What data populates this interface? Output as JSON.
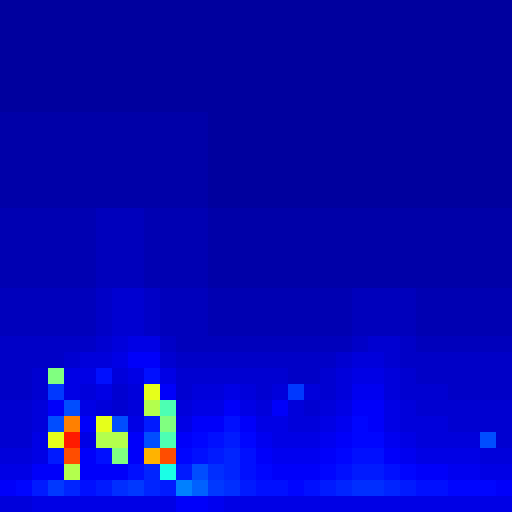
{
  "chart_data": {
    "type": "heatmap",
    "tick_labels": false,
    "zlim": [
      0,
      100
    ],
    "cells": [
      [
        3,
        3,
        3,
        3,
        3,
        3,
        3,
        3,
        3,
        3,
        3,
        3,
        3,
        3,
        3,
        3,
        3,
        3,
        3,
        3,
        3,
        3,
        3,
        3,
        3,
        3,
        3,
        3,
        3,
        3,
        3,
        3
      ],
      [
        3,
        3,
        3,
        3,
        3,
        3,
        3,
        3,
        3,
        3,
        3,
        3,
        3,
        3,
        3,
        3,
        3,
        3,
        3,
        3,
        3,
        3,
        3,
        3,
        3,
        3,
        3,
        3,
        3,
        3,
        3,
        3
      ],
      [
        3,
        3,
        3,
        3,
        3,
        3,
        3,
        3,
        3,
        3,
        3,
        3,
        3,
        3,
        3,
        3,
        3,
        3,
        3,
        3,
        3,
        3,
        3,
        3,
        3,
        3,
        3,
        3,
        3,
        3,
        3,
        3
      ],
      [
        3,
        3,
        3,
        3,
        3,
        3,
        3,
        3,
        3,
        3,
        3,
        3,
        3,
        3,
        3,
        3,
        3,
        3,
        3,
        3,
        3,
        3,
        3,
        3,
        3,
        3,
        3,
        3,
        3,
        3,
        3,
        3
      ],
      [
        3,
        3,
        3,
        3,
        3,
        3,
        3,
        3,
        3,
        3,
        3,
        3,
        3,
        3,
        3,
        3,
        3,
        3,
        3,
        3,
        3,
        3,
        3,
        3,
        3,
        3,
        3,
        3,
        3,
        3,
        3,
        3
      ],
      [
        3,
        3,
        3,
        3,
        3,
        3,
        3,
        3,
        3,
        3,
        3,
        3,
        3,
        3,
        3,
        3,
        3,
        3,
        3,
        3,
        3,
        3,
        3,
        3,
        3,
        3,
        3,
        3,
        3,
        3,
        3,
        3
      ],
      [
        3,
        3,
        3,
        3,
        3,
        3,
        3,
        3,
        3,
        3,
        3,
        3,
        3,
        3,
        3,
        3,
        3,
        3,
        3,
        3,
        3,
        3,
        3,
        3,
        3,
        3,
        3,
        3,
        3,
        3,
        3,
        3
      ],
      [
        4,
        4,
        4,
        4,
        4,
        4,
        4,
        4,
        4,
        4,
        4,
        4,
        4,
        3,
        3,
        3,
        3,
        3,
        3,
        3,
        3,
        3,
        3,
        3,
        3,
        3,
        3,
        3,
        3,
        3,
        3,
        3
      ],
      [
        4,
        4,
        4,
        4,
        4,
        4,
        4,
        4,
        4,
        4,
        4,
        4,
        4,
        3,
        3,
        3,
        3,
        3,
        3,
        3,
        3,
        3,
        3,
        3,
        3,
        3,
        3,
        3,
        3,
        3,
        3,
        3
      ],
      [
        4,
        4,
        4,
        4,
        4,
        4,
        4,
        4,
        4,
        4,
        4,
        4,
        4,
        3,
        3,
        3,
        3,
        3,
        3,
        3,
        3,
        3,
        3,
        3,
        3,
        3,
        3,
        3,
        3,
        3,
        3,
        3
      ],
      [
        4,
        4,
        4,
        4,
        4,
        4,
        4,
        4,
        4,
        4,
        4,
        4,
        4,
        3,
        3,
        3,
        3,
        3,
        3,
        3,
        3,
        3,
        3,
        3,
        3,
        3,
        3,
        3,
        3,
        3,
        3,
        3
      ],
      [
        4,
        4,
        4,
        4,
        4,
        4,
        4,
        4,
        4,
        4,
        4,
        4,
        4,
        3,
        3,
        3,
        3,
        3,
        3,
        3,
        3,
        3,
        3,
        3,
        3,
        3,
        3,
        3,
        3,
        3,
        3,
        3
      ],
      [
        4,
        4,
        4,
        4,
        4,
        4,
        4,
        4,
        4,
        4,
        4,
        4,
        4,
        3,
        3,
        3,
        3,
        3,
        3,
        3,
        3,
        3,
        3,
        3,
        3,
        3,
        3,
        3,
        3,
        3,
        3,
        3
      ],
      [
        5,
        5,
        5,
        5,
        5,
        5,
        6,
        6,
        6,
        5,
        5,
        5,
        5,
        4,
        4,
        4,
        4,
        4,
        4,
        4,
        4,
        4,
        4,
        4,
        4,
        4,
        4,
        4,
        4,
        4,
        4,
        4
      ],
      [
        5,
        5,
        5,
        5,
        5,
        5,
        6,
        6,
        6,
        5,
        5,
        5,
        5,
        4,
        4,
        4,
        4,
        4,
        4,
        4,
        4,
        4,
        4,
        4,
        4,
        4,
        4,
        4,
        4,
        4,
        4,
        4
      ],
      [
        5,
        5,
        5,
        5,
        5,
        5,
        6,
        6,
        6,
        5,
        5,
        5,
        5,
        4,
        4,
        4,
        4,
        4,
        4,
        4,
        4,
        4,
        4,
        4,
        4,
        4,
        4,
        4,
        4,
        4,
        4,
        4
      ],
      [
        5,
        5,
        5,
        5,
        5,
        5,
        6,
        6,
        6,
        5,
        5,
        5,
        5,
        4,
        4,
        4,
        4,
        4,
        4,
        4,
        4,
        4,
        4,
        4,
        4,
        4,
        4,
        4,
        4,
        4,
        4,
        4
      ],
      [
        5,
        5,
        5,
        5,
        5,
        5,
        6,
        6,
        6,
        5,
        5,
        5,
        5,
        4,
        4,
        4,
        4,
        4,
        4,
        4,
        4,
        4,
        4,
        4,
        4,
        4,
        4,
        4,
        4,
        4,
        4,
        4
      ],
      [
        6,
        6,
        6,
        6,
        6,
        6,
        7,
        8,
        8,
        7,
        6,
        6,
        6,
        5,
        5,
        5,
        5,
        5,
        5,
        5,
        5,
        5,
        6,
        6,
        6,
        6,
        5,
        5,
        5,
        5,
        5,
        5
      ],
      [
        6,
        6,
        6,
        6,
        6,
        6,
        7,
        8,
        8,
        7,
        6,
        6,
        6,
        5,
        5,
        5,
        5,
        5,
        5,
        5,
        5,
        5,
        6,
        6,
        6,
        6,
        5,
        5,
        5,
        5,
        5,
        5
      ],
      [
        6,
        6,
        6,
        6,
        6,
        6,
        7,
        8,
        8,
        7,
        6,
        6,
        6,
        5,
        5,
        5,
        5,
        5,
        5,
        5,
        5,
        5,
        6,
        6,
        6,
        6,
        5,
        5,
        5,
        5,
        5,
        5
      ],
      [
        7,
        7,
        7,
        7,
        7,
        7,
        8,
        9,
        10,
        10,
        7,
        6,
        6,
        6,
        6,
        6,
        6,
        6,
        6,
        6,
        6,
        6,
        7,
        8,
        8,
        7,
        6,
        6,
        6,
        6,
        6,
        6
      ],
      [
        7,
        7,
        7,
        7,
        8,
        9,
        9,
        10,
        12,
        12,
        8,
        7,
        7,
        7,
        7,
        7,
        7,
        7,
        7,
        7,
        7,
        8,
        9,
        9,
        8,
        7,
        7,
        7,
        7,
        7,
        7,
        7
      ],
      [
        7,
        7,
        8,
        50,
        10,
        10,
        14,
        9,
        10,
        14,
        10,
        8,
        8,
        8,
        8,
        8,
        8,
        8,
        7,
        7,
        8,
        9,
        10,
        10,
        9,
        8,
        7,
        7,
        7,
        7,
        7,
        7
      ],
      [
        7,
        7,
        8,
        18,
        10,
        9,
        10,
        8,
        9,
        60,
        12,
        8,
        9,
        9,
        10,
        9,
        8,
        9,
        18,
        9,
        8,
        9,
        11,
        11,
        9,
        8,
        8,
        8,
        7,
        7,
        7,
        7
      ],
      [
        8,
        8,
        9,
        12,
        20,
        10,
        9,
        8,
        9,
        55,
        45,
        9,
        10,
        10,
        12,
        10,
        9,
        12,
        9,
        8,
        9,
        10,
        12,
        12,
        10,
        9,
        8,
        8,
        8,
        8,
        8,
        8
      ],
      [
        8,
        8,
        9,
        20,
        75,
        12,
        60,
        20,
        10,
        15,
        50,
        10,
        12,
        12,
        14,
        12,
        10,
        10,
        9,
        9,
        10,
        11,
        13,
        12,
        10,
        9,
        9,
        9,
        8,
        8,
        8,
        8
      ],
      [
        8,
        8,
        10,
        60,
        85,
        10,
        55,
        55,
        12,
        20,
        45,
        12,
        13,
        14,
        15,
        13,
        11,
        10,
        10,
        10,
        11,
        12,
        13,
        13,
        11,
        10,
        9,
        9,
        9,
        9,
        20,
        8
      ],
      [
        9,
        9,
        10,
        15,
        80,
        12,
        14,
        50,
        12,
        70,
        80,
        13,
        14,
        15,
        16,
        14,
        12,
        11,
        11,
        11,
        12,
        13,
        14,
        14,
        12,
        11,
        10,
        10,
        10,
        10,
        9,
        9
      ],
      [
        10,
        10,
        12,
        12,
        55,
        12,
        12,
        12,
        14,
        16,
        40,
        15,
        20,
        17,
        16,
        14,
        13,
        12,
        12,
        12,
        13,
        14,
        15,
        15,
        14,
        13,
        12,
        12,
        11,
        11,
        10,
        10
      ],
      [
        12,
        13,
        15,
        18,
        16,
        14,
        15,
        17,
        18,
        16,
        15,
        25,
        22,
        18,
        17,
        15,
        14,
        14,
        13,
        14,
        15,
        16,
        17,
        17,
        16,
        15,
        14,
        14,
        13,
        13,
        13,
        12
      ],
      [
        9,
        9,
        10,
        10,
        10,
        10,
        10,
        10,
        10,
        10,
        10,
        12,
        12,
        11,
        10,
        10,
        10,
        10,
        10,
        10,
        10,
        10,
        10,
        10,
        10,
        10,
        10,
        10,
        10,
        10,
        10,
        10
      ]
    ]
  }
}
